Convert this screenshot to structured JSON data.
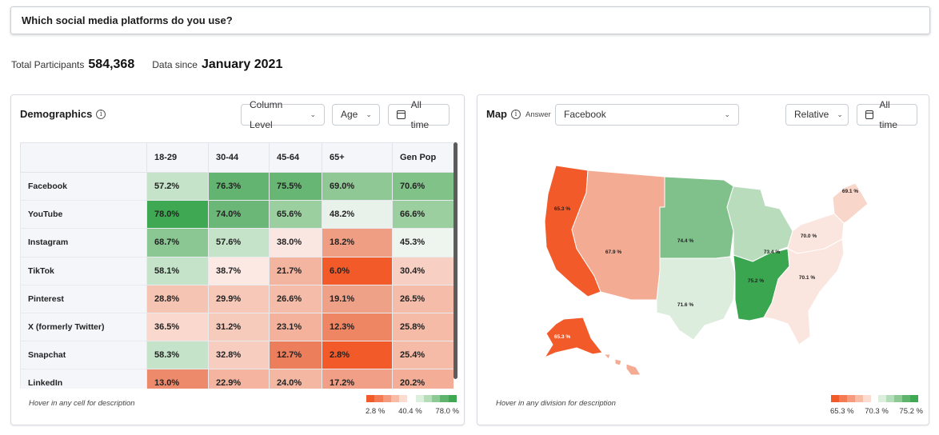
{
  "question": "Which social media platforms do you use?",
  "stats": {
    "participants_label": "Total Participants",
    "participants_value": "584,368",
    "since_label": "Data since",
    "since_value": "January 2021"
  },
  "demographics": {
    "title": "Demographics",
    "info_glyph": "i",
    "level_select": "Column Level",
    "group_select": "Age",
    "time_label": "All time",
    "columns": [
      "18-29",
      "30-44",
      "45-64",
      "65+",
      "Gen Pop"
    ],
    "rows": [
      {
        "label": "Facebook",
        "values": [
          "57.2%",
          "76.3%",
          "75.5%",
          "69.0%",
          "70.6%"
        ]
      },
      {
        "label": "YouTube",
        "values": [
          "78.0%",
          "74.0%",
          "65.6%",
          "48.2%",
          "66.6%"
        ]
      },
      {
        "label": "Instagram",
        "values": [
          "68.7%",
          "57.6%",
          "38.0%",
          "18.2%",
          "45.3%"
        ]
      },
      {
        "label": "TikTok",
        "values": [
          "58.1%",
          "38.7%",
          "21.7%",
          "6.0%",
          "30.4%"
        ]
      },
      {
        "label": "Pinterest",
        "values": [
          "28.8%",
          "29.9%",
          "26.6%",
          "19.1%",
          "26.5%"
        ]
      },
      {
        "label": "X (formerly Twitter)",
        "values": [
          "36.5%",
          "31.2%",
          "23.1%",
          "12.3%",
          "25.8%"
        ]
      },
      {
        "label": "Snapchat",
        "values": [
          "58.3%",
          "32.8%",
          "12.7%",
          "2.8%",
          "25.4%"
        ]
      },
      {
        "label": "LinkedIn",
        "values": [
          "13.0%",
          "22.9%",
          "24.0%",
          "17.2%",
          "20.2%"
        ]
      }
    ],
    "cell_colors": [
      [
        "#c5e3c8",
        "#62b470",
        "#67b673",
        "#8fc895",
        "#81c289"
      ],
      [
        "#3ea853",
        "#6bb777",
        "#9ccf9f",
        "#e9f2ea",
        "#9ccf9f"
      ],
      [
        "#8bc793",
        "#c5e3c8",
        "#fbe7e2",
        "#ef9e84",
        "#eef5ef"
      ],
      [
        "#c5e3c8",
        "#fce9e4",
        "#f3b4a0",
        "#f25a29",
        "#f8d0c3"
      ],
      [
        "#f6c4b3",
        "#f7c8b8",
        "#f5bda9",
        "#efa188",
        "#f5bda9"
      ],
      [
        "#fad8cd",
        "#f7cbbc",
        "#f4b19c",
        "#ee8563",
        "#f5bba7"
      ],
      [
        "#c5e3c8",
        "#f7cdbf",
        "#ed7e5b",
        "#f25a29",
        "#f5bba6"
      ],
      [
        "#ed8a6b",
        "#f4b49f",
        "#f3b7a2",
        "#f19f87",
        "#f4ae98"
      ]
    ],
    "hint": "Hover in any cell for description",
    "legend": {
      "min": "2.8 %",
      "mid": "40.4 %",
      "max": "78.0 %"
    }
  },
  "map": {
    "title": "Map",
    "answer_label": "Answer",
    "answer_value": "Facebook",
    "mode_select": "Relative",
    "time_label": "All time",
    "hint": "Hover in any division for description",
    "legend": {
      "min": "65.3 %",
      "mid": "70.3 %",
      "max": "75.2 %"
    },
    "region_values": {
      "west_coast": "65.3 %",
      "mountain": "67.9 %",
      "north_central": "74.4 %",
      "east_north_central": "73.4 %",
      "mid_atlantic": "70.0 %",
      "new_england": "69.1 %",
      "south_atlantic": "70.1 %",
      "east_south_central": "75.2 %",
      "west_south_central": "71.6 %",
      "alaska": "65.3 %"
    },
    "region_colors": {
      "west_coast": "#f25a29",
      "mountain": "#f4ab93",
      "north_central": "#7fc08b",
      "east_north_central": "#b9dcbd",
      "mid_atlantic": "#fbe6df",
      "new_england": "#f8d6ca",
      "south_atlantic": "#fbe6df",
      "east_south_central": "#3aa64f",
      "west_south_central": "#dcecdd",
      "pacific": "#f4ab93"
    }
  }
}
